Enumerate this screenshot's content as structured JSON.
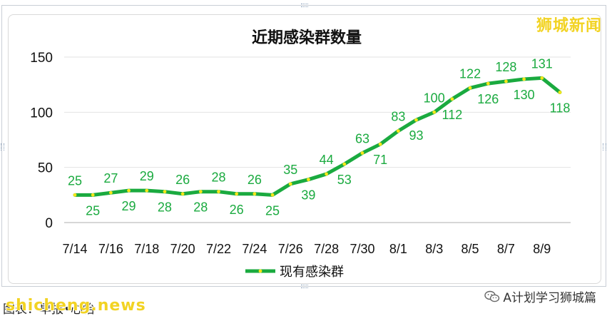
{
  "watermark": "狮城新闻",
  "source_text": "图表：早报•心怡",
  "brand_overlay": "shicheng.news",
  "wechat_label": "A计划学习狮城篇",
  "icons": {
    "wechat": "wechat-icon"
  },
  "colors": {
    "line": "#1aaa3f",
    "marker": "#f5e61a",
    "label": "#1aaa3f",
    "grid": "#e3e3e3",
    "title": "#111111"
  },
  "chart_data": {
    "type": "line",
    "title": "近期感染群数量",
    "xlabel": "",
    "ylabel": "",
    "ylim": [
      0,
      150
    ],
    "yticks": [
      0,
      50,
      100,
      150
    ],
    "grid": true,
    "legend": "bottom",
    "x": [
      "7/14",
      "7/15",
      "7/16",
      "7/17",
      "7/18",
      "7/19",
      "7/20",
      "7/21",
      "7/22",
      "7/23",
      "7/24",
      "7/25",
      "7/26",
      "7/27",
      "7/28",
      "7/29",
      "7/30",
      "7/31",
      "8/1",
      "8/2",
      "8/3",
      "8/4",
      "8/5",
      "8/6",
      "8/7",
      "8/8",
      "8/9",
      "8/10"
    ],
    "xticks": [
      "7/14",
      "7/16",
      "7/18",
      "7/20",
      "7/22",
      "7/24",
      "7/26",
      "7/28",
      "7/30",
      "8/1",
      "8/3",
      "8/5",
      "8/7",
      "8/9"
    ],
    "series": [
      {
        "name": "现有感染群",
        "values": [
          25,
          25,
          27,
          29,
          29,
          28,
          26,
          28,
          28,
          26,
          26,
          25,
          35,
          39,
          44,
          53,
          63,
          71,
          83,
          93,
          100,
          112,
          122,
          126,
          128,
          130,
          131,
          118
        ]
      }
    ]
  }
}
